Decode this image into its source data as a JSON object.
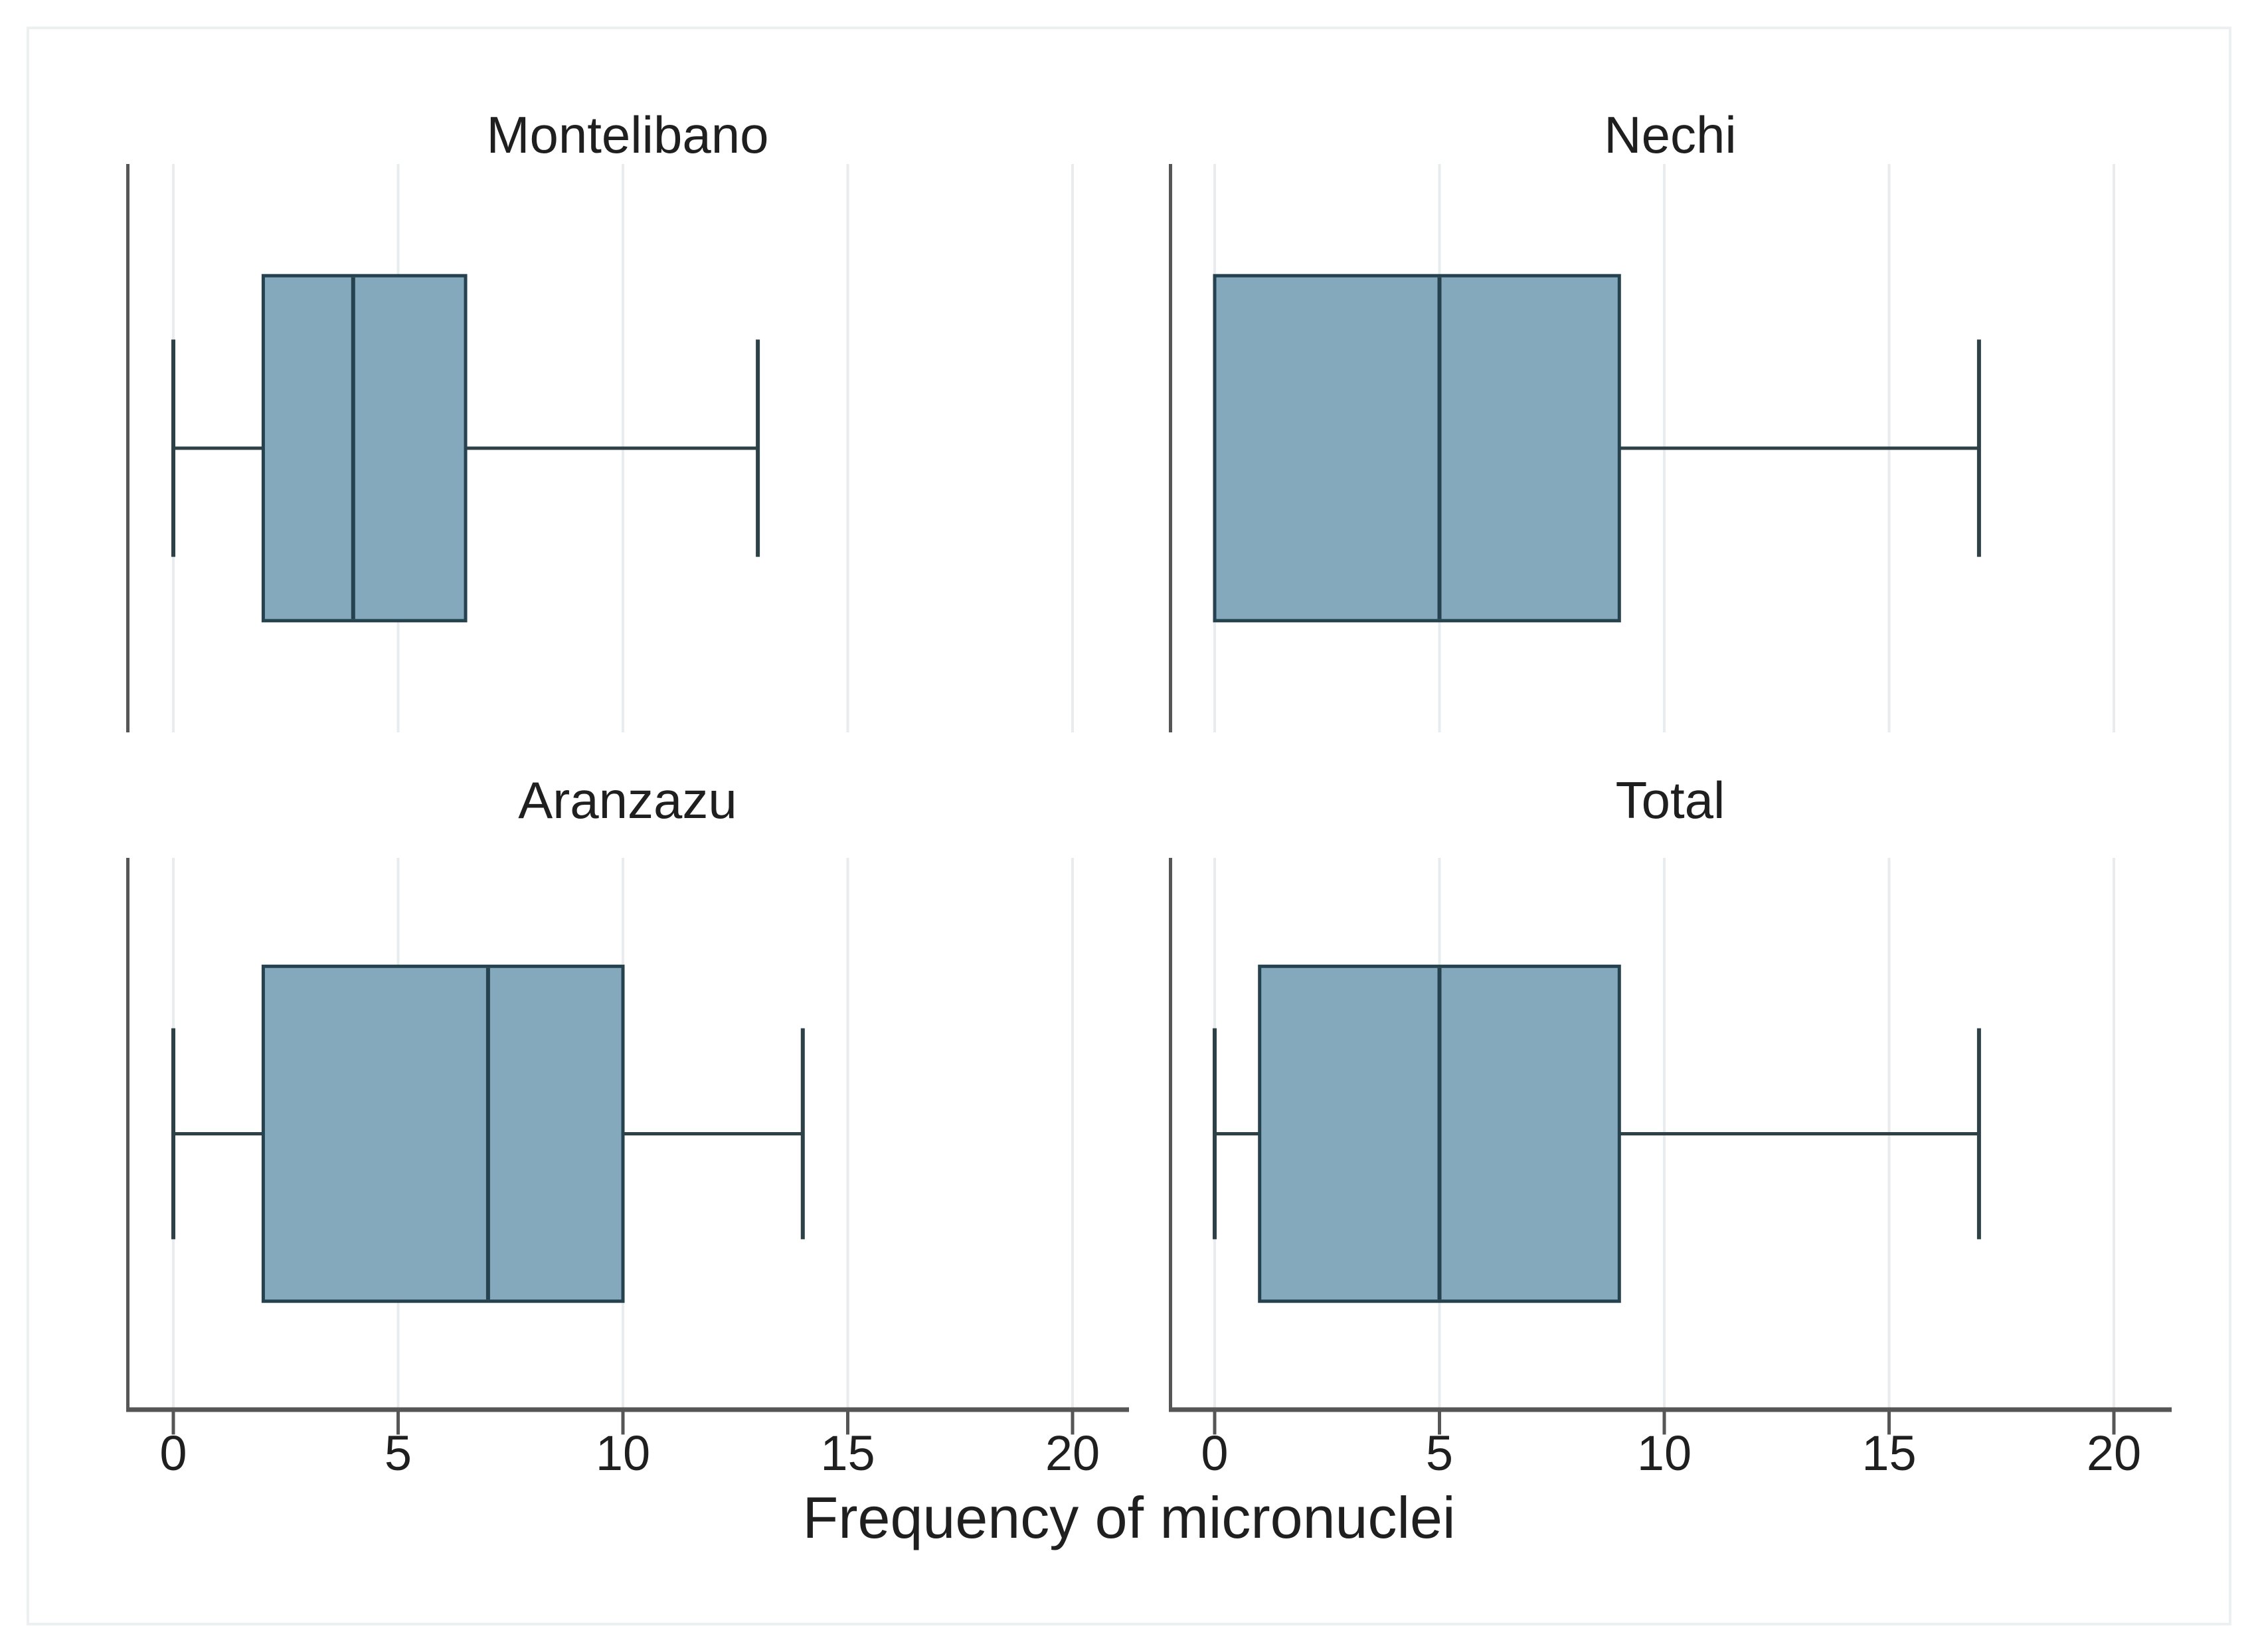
{
  "figure": {
    "background": "#ffffff",
    "border_color": "#edf0f1"
  },
  "chart_data": {
    "type": "box",
    "orientation": "horizontal",
    "layout": "2x2 small multiples",
    "xlabel": "Frequency of micronuclei",
    "xticks": [
      0,
      5,
      10,
      15,
      20
    ],
    "xlim": [
      -1.05,
      21.3
    ],
    "grid": true,
    "legend": "none",
    "panels": [
      {
        "title": "Montelibano",
        "row": 0,
        "col": 0,
        "whisker_low": 0,
        "q1": 2,
        "median": 4,
        "q3": 6.5,
        "whisker_high": 13
      },
      {
        "title": "Nechi",
        "row": 0,
        "col": 1,
        "whisker_low": 0,
        "q1": 0,
        "median": 5,
        "q3": 9,
        "whisker_high": 17
      },
      {
        "title": "Aranzazu",
        "row": 1,
        "col": 0,
        "whisker_low": 0,
        "q1": 2,
        "median": 7,
        "q3": 10,
        "whisker_high": 14
      },
      {
        "title": "Total",
        "row": 1,
        "col": 1,
        "whisker_low": 0,
        "q1": 1,
        "median": 5,
        "q3": 9,
        "whisker_high": 17
      }
    ],
    "colors": {
      "box_fill": "#84a8bc",
      "box_border": "#26424f",
      "median": "#26424f",
      "whisker": "#2e4146",
      "axis": "#565656",
      "gridline": "#e8ecee",
      "text": "#1f1f1f"
    }
  }
}
